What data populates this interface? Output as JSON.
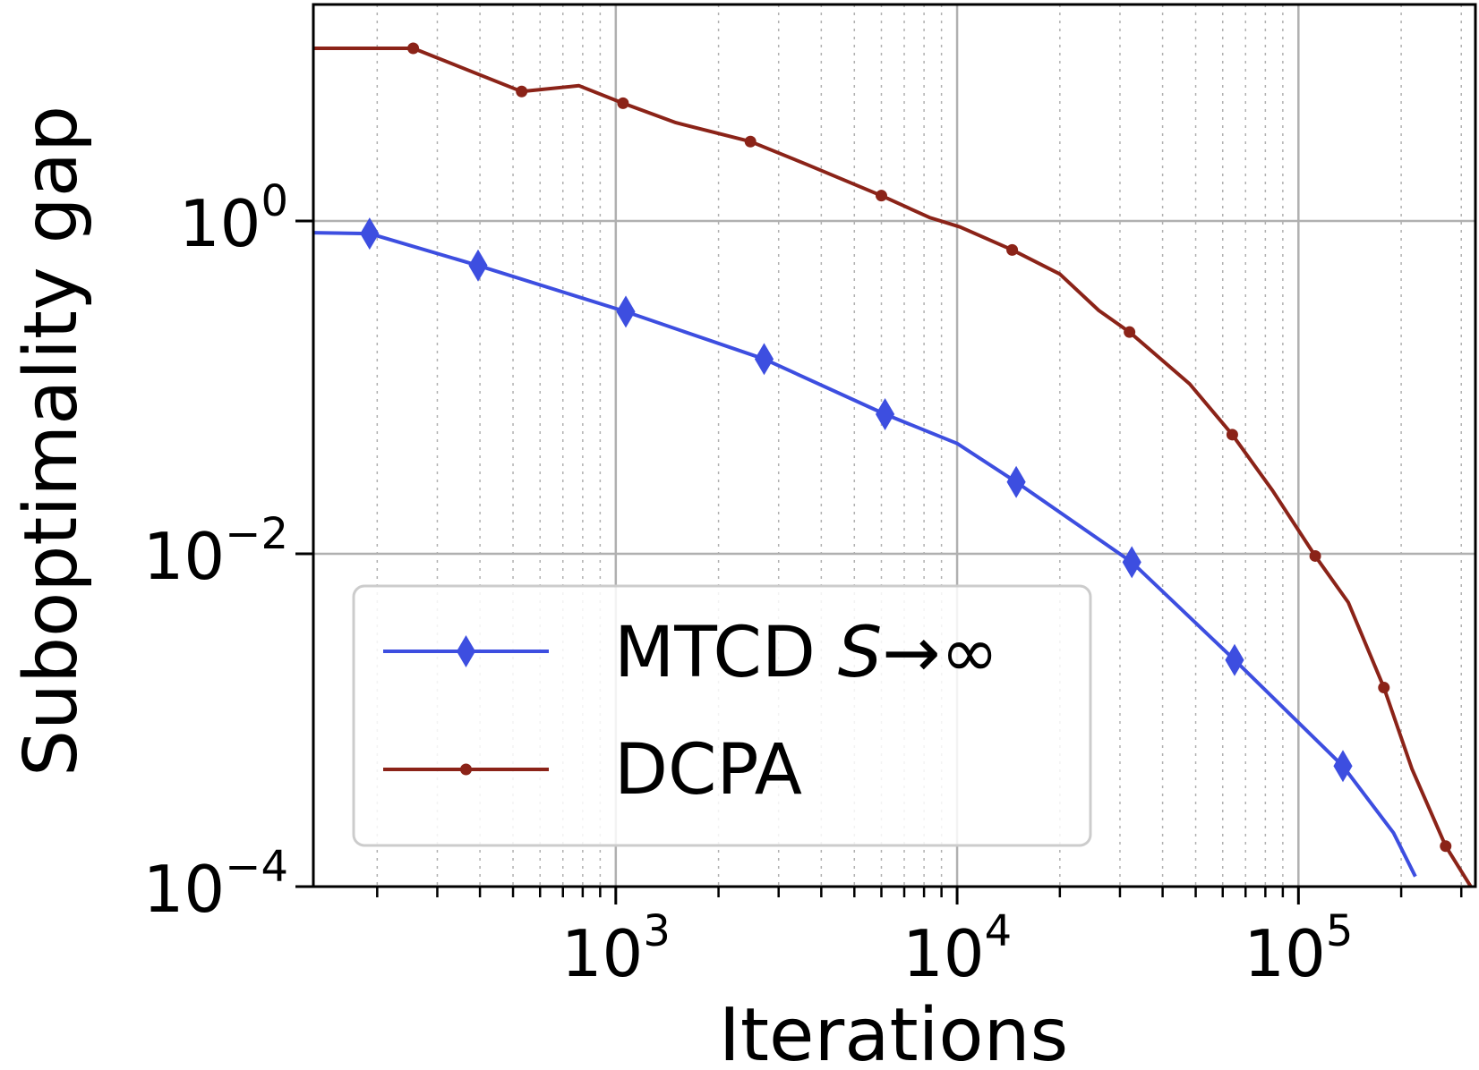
{
  "chart_data": {
    "type": "line",
    "title": "",
    "xlabel": "Iterations",
    "ylabel": "Suboptimality gap",
    "xscale": "log",
    "yscale": "log",
    "xlim": [
      130,
      330000
    ],
    "ylim": [
      0.0001,
      20
    ],
    "grid": true,
    "legend_position": "lower-left",
    "x_ticks": [
      {
        "value": 1000,
        "base": "10",
        "exp": "3"
      },
      {
        "value": 10000,
        "base": "10",
        "exp": "4"
      },
      {
        "value": 100000,
        "base": "10",
        "exp": "5"
      }
    ],
    "y_ticks": [
      {
        "value": 1,
        "base": "10",
        "exp": "0"
      },
      {
        "value": 0.01,
        "base": "10",
        "exp": "−2"
      },
      {
        "value": 0.0001,
        "base": "10",
        "exp": "−4"
      }
    ],
    "series": [
      {
        "name": "MTCD S→∞",
        "legend_prefix": "MTCD ",
        "legend_math": "S",
        "legend_suffix": "→∞",
        "color": "#3d4ee0",
        "marker": "diamond",
        "points": [
          [
            130,
            0.85
          ],
          [
            190,
            0.84
          ],
          [
            395,
            0.54
          ],
          [
            1070,
            0.285
          ],
          [
            2720,
            0.148
          ],
          [
            6150,
            0.069
          ],
          [
            10000,
            0.046
          ],
          [
            14900,
            0.027
          ],
          [
            32500,
            0.0089
          ],
          [
            65000,
            0.0023
          ],
          [
            135000,
            0.00053
          ],
          [
            190000,
            0.00021
          ],
          [
            220000,
            0.000115
          ]
        ],
        "marker_points": [
          [
            190,
            0.84
          ],
          [
            395,
            0.54
          ],
          [
            1070,
            0.285
          ],
          [
            2720,
            0.148
          ],
          [
            6150,
            0.069
          ],
          [
            14900,
            0.027
          ],
          [
            32500,
            0.0089
          ],
          [
            65000,
            0.0023
          ],
          [
            135000,
            0.00053
          ]
        ]
      },
      {
        "name": "DCPA",
        "legend_prefix": "DCPA",
        "legend_math": "",
        "legend_suffix": "",
        "color": "#8b2318",
        "marker": "dot",
        "points": [
          [
            130,
            10.9
          ],
          [
            255,
            10.9
          ],
          [
            530,
            6.0
          ],
          [
            780,
            6.5
          ],
          [
            1050,
            5.1
          ],
          [
            1500,
            3.9
          ],
          [
            2480,
            3.0
          ],
          [
            3600,
            2.2
          ],
          [
            6000,
            1.42
          ],
          [
            8300,
            1.05
          ],
          [
            10200,
            0.92
          ],
          [
            14500,
            0.67
          ],
          [
            20000,
            0.48
          ],
          [
            26000,
            0.29
          ],
          [
            32000,
            0.215
          ],
          [
            48000,
            0.105
          ],
          [
            64000,
            0.052
          ],
          [
            84000,
            0.024
          ],
          [
            112000,
            0.0097
          ],
          [
            140000,
            0.0051
          ],
          [
            178000,
            0.00157
          ],
          [
            215000,
            0.00051
          ],
          [
            270000,
            0.000175
          ],
          [
            320000,
            0.0001
          ]
        ],
        "marker_points": [
          [
            255,
            10.9
          ],
          [
            530,
            6.0
          ],
          [
            1050,
            5.1
          ],
          [
            2480,
            3.0
          ],
          [
            6000,
            1.42
          ],
          [
            14500,
            0.67
          ],
          [
            32000,
            0.215
          ],
          [
            64000,
            0.052
          ],
          [
            112000,
            0.0097
          ],
          [
            178000,
            0.00157
          ],
          [
            270000,
            0.000175
          ]
        ]
      }
    ]
  }
}
